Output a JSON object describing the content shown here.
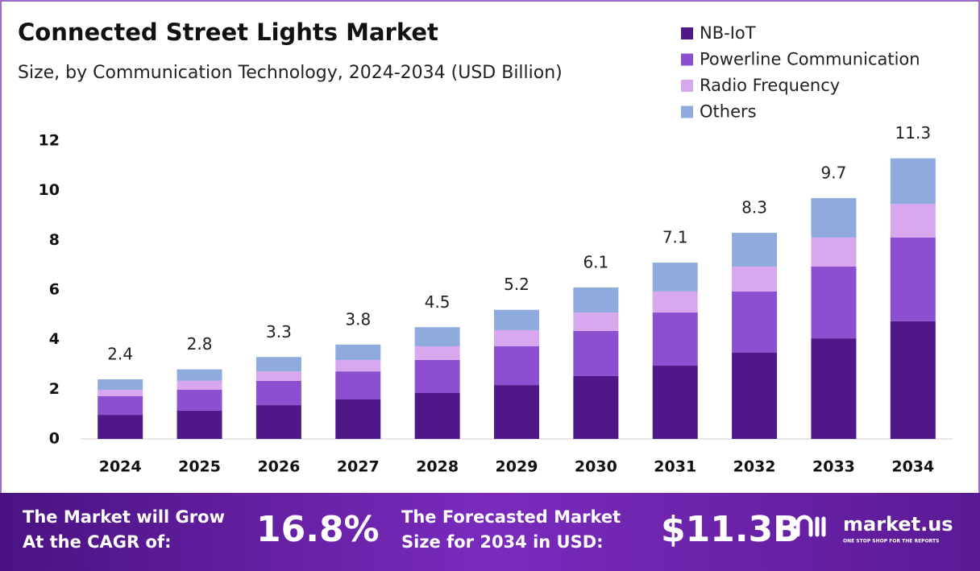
{
  "chart_data": {
    "type": "stacked-bar",
    "title": "Connected Street Lights Market",
    "subtitle": "Size, by Communication Technology, 2024-2034 (USD Billion)",
    "categories": [
      "2024",
      "2025",
      "2026",
      "2027",
      "2028",
      "2029",
      "2030",
      "2031",
      "2032",
      "2033",
      "2034"
    ],
    "series": [
      {
        "name": "NB-IoT",
        "color": "#4f1787",
        "values": [
          0.97,
          1.14,
          1.36,
          1.59,
          1.85,
          2.17,
          2.53,
          2.95,
          3.47,
          4.05,
          4.74
        ]
      },
      {
        "name": "Powerline Communication",
        "color": "#8b4fcf",
        "values": [
          0.75,
          0.84,
          0.98,
          1.13,
          1.33,
          1.56,
          1.82,
          2.14,
          2.47,
          2.89,
          3.37
        ]
      },
      {
        "name": "Radio Frequency",
        "color": "#d7a8ee",
        "values": [
          0.26,
          0.36,
          0.38,
          0.46,
          0.55,
          0.65,
          0.74,
          0.85,
          1.0,
          1.17,
          1.36
        ]
      },
      {
        "name": "Others",
        "color": "#8faadc",
        "values": [
          0.42,
          0.46,
          0.58,
          0.62,
          0.77,
          0.82,
          1.01,
          1.16,
          1.36,
          1.59,
          1.83
        ]
      }
    ],
    "totals": [
      2.4,
      2.8,
      3.3,
      3.8,
      4.5,
      5.2,
      6.1,
      7.1,
      8.3,
      9.7,
      11.3
    ],
    "ylim": [
      0,
      12
    ],
    "yticks": [
      0,
      2,
      4,
      6,
      8,
      10,
      12
    ],
    "grid": false,
    "legend": "top-right"
  },
  "footer": {
    "cagr_label": [
      "The Market will Grow",
      "At the CAGR of:"
    ],
    "cagr": "16.8%",
    "size_label": [
      "The Forecasted Market",
      "Size for 2034 in USD:"
    ],
    "size": "$11.3B",
    "brand": "market.us",
    "tagline": "ONE STOP SHOP FOR THE REPORTS"
  }
}
